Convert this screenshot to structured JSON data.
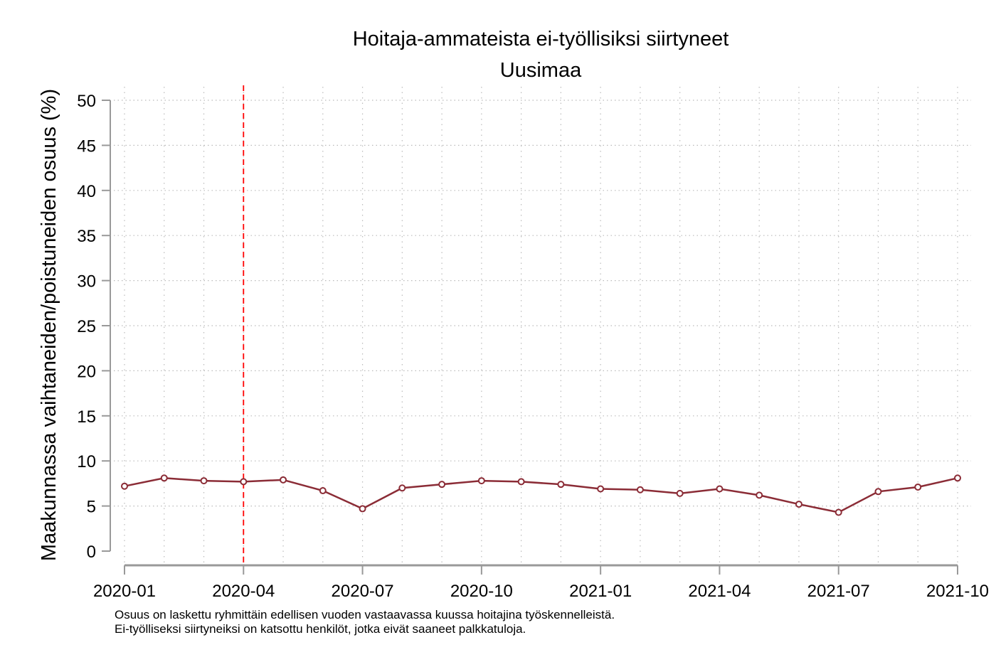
{
  "chart_data": {
    "type": "line",
    "title": "Hoitaja-ammateista ei-työllisiksi siirtyneet",
    "subtitle": "Uusimaa",
    "xlabel": "",
    "ylabel": "Maakunnassa vaihtaneiden/poistuneiden osuus (%)",
    "ylim": [
      0,
      50
    ],
    "yticks": [
      0,
      5,
      10,
      15,
      20,
      25,
      30,
      35,
      40,
      45,
      50
    ],
    "xtick_labels": [
      "2020-01",
      "2020-04",
      "2020-07",
      "2020-10",
      "2021-01",
      "2021-04",
      "2021-07",
      "2021-10"
    ],
    "grid": true,
    "x": [
      "2020-01",
      "2020-02",
      "2020-03",
      "2020-04",
      "2020-05",
      "2020-06",
      "2020-07",
      "2020-08",
      "2020-09",
      "2020-10",
      "2020-11",
      "2020-12",
      "2021-01",
      "2021-02",
      "2021-03",
      "2021-04",
      "2021-05",
      "2021-06",
      "2021-07",
      "2021-08",
      "2021-09",
      "2021-10"
    ],
    "series": [
      {
        "values": [
          7.2,
          8.1,
          7.8,
          7.7,
          7.9,
          6.7,
          4.7,
          7.0,
          7.4,
          7.8,
          7.7,
          7.4,
          6.9,
          6.8,
          6.4,
          6.9,
          6.2,
          5.2,
          4.3,
          6.6,
          7.1,
          8.1
        ],
        "color": "#8b2c36"
      }
    ],
    "vline": {
      "x": "2020-04",
      "color": "#ff0000",
      "style": "dashed"
    },
    "notes": [
      "Osuus on laskettu ryhmittäin edellisen vuoden vastaavassa kuussa hoitajina työskennelleistä.",
      "Ei-työlliseksi siirtyneiksi on katsottu henkilöt, jotka eivät saaneet palkkatuloja."
    ]
  }
}
